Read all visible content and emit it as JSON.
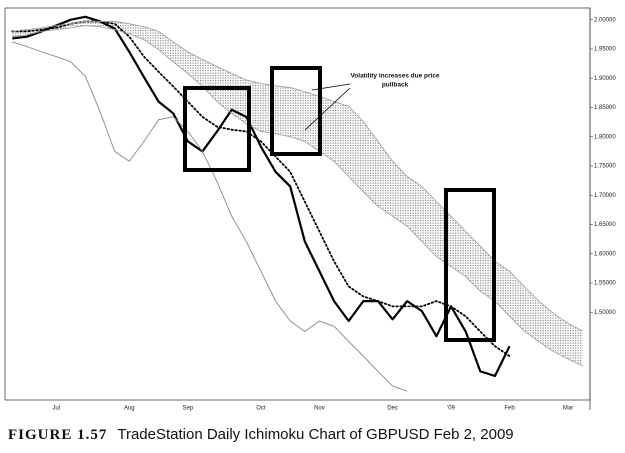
{
  "chart_data": {
    "type": "line",
    "annotation": [
      "Volatility increases due price",
      "pullback"
    ],
    "caption": {
      "figure": "FIGURE 1.57",
      "text": "TradeStation Daily Ichimoku Chart of GBPUSD Feb 2, 2009"
    },
    "categories": [
      null,
      null,
      null,
      "Jul",
      null,
      null,
      null,
      null,
      "Aug",
      null,
      null,
      null,
      "Sep",
      null,
      null,
      null,
      null,
      "Oct",
      null,
      null,
      null,
      "Nov",
      null,
      null,
      null,
      null,
      "Dec",
      null,
      null,
      null,
      "'09",
      null,
      null,
      null,
      "Feb",
      null,
      null,
      null,
      "Mar",
      null
    ],
    "series": [
      {
        "color": "#000000",
        "style": "solid",
        "width": 2.2,
        "values": [
          1.968,
          1.971,
          1.98,
          1.99,
          2.0,
          2.005,
          1.997,
          1.985,
          1.945,
          1.902,
          1.86,
          1.84,
          1.792,
          1.775,
          1.809,
          1.846,
          1.834,
          1.783,
          1.74,
          1.715,
          1.621,
          1.57,
          1.519,
          1.485,
          1.519,
          1.519,
          1.488,
          1.519,
          1.502,
          1.459,
          1.51,
          1.467,
          1.399,
          1.391,
          1.442,
          null,
          null,
          null,
          null,
          null
        ]
      },
      {
        "color": "#000000",
        "style": "dotted",
        "width": 1.8,
        "values": [
          1.98,
          1.98,
          1.983,
          1.986,
          1.993,
          1.997,
          1.997,
          1.993,
          1.971,
          1.937,
          1.911,
          1.886,
          1.86,
          1.834,
          1.817,
          1.812,
          1.809,
          1.792,
          1.766,
          1.74,
          1.689,
          1.638,
          1.587,
          1.544,
          1.527,
          1.519,
          1.51,
          1.51,
          1.51,
          1.519,
          1.51,
          1.493,
          1.467,
          1.442,
          1.425,
          null,
          null,
          null,
          null,
          null
        ]
      },
      {
        "color": "#888888",
        "style": "solid",
        "width": 0.9,
        "values": [
          1.962,
          1.954,
          1.945,
          1.937,
          1.928,
          1.903,
          1.843,
          1.775,
          1.758,
          1.792,
          1.829,
          1.834,
          1.809,
          1.775,
          1.723,
          1.664,
          1.621,
          1.57,
          1.519,
          1.485,
          1.467,
          1.485,
          1.476,
          1.45,
          1.425,
          1.399,
          1.374,
          1.365,
          null,
          null,
          null,
          null,
          null,
          null,
          null,
          null,
          null,
          null,
          null,
          null
        ]
      },
      {
        "color": "#999999",
        "style": "solid",
        "width": 0.8,
        "values": [
          1.971,
          1.974,
          1.98,
          1.983,
          1.986,
          1.99,
          1.988,
          1.983,
          1.976,
          1.966,
          1.949,
          1.928,
          1.908,
          1.886,
          1.86,
          1.84,
          1.822,
          1.809,
          1.805,
          1.8,
          1.792,
          1.775,
          1.758,
          1.732,
          1.706,
          1.681,
          1.664,
          1.647,
          1.621,
          1.595,
          1.578,
          1.561,
          1.536,
          1.519,
          1.493,
          1.468,
          1.45,
          1.433,
          1.42,
          1.408
        ]
      },
      {
        "color": "#999999",
        "style": "solid",
        "width": 0.8,
        "values": [
          1.98,
          1.983,
          1.986,
          1.99,
          1.993,
          1.997,
          1.997,
          1.997,
          1.993,
          1.988,
          1.98,
          1.962,
          1.945,
          1.932,
          1.92,
          1.908,
          1.897,
          1.891,
          1.887,
          1.884,
          1.877,
          1.869,
          1.86,
          1.852,
          1.826,
          1.792,
          1.758,
          1.732,
          1.715,
          1.689,
          1.664,
          1.638,
          1.613,
          1.587,
          1.57,
          1.544,
          1.519,
          1.498,
          1.481,
          1.468
        ]
      }
    ],
    "cloud_fill": "#bbbbbb",
    "ylim": [
      1.35,
      2.02
    ],
    "yticks": [
      {
        "value": 2.0,
        "label": "2.00000"
      },
      {
        "value": 1.95,
        "label": "1.95000"
      },
      {
        "value": 1.9,
        "label": "1.90000"
      },
      {
        "value": 1.85,
        "label": "1.85000"
      },
      {
        "value": 1.8,
        "label": "1.80000"
      },
      {
        "value": 1.75,
        "label": "1.75000"
      },
      {
        "value": 1.7,
        "label": "1.70000"
      },
      {
        "value": 1.65,
        "label": "1.65000"
      },
      {
        "value": 1.6,
        "label": "1.60000"
      },
      {
        "value": 1.55,
        "label": "1.55000"
      },
      {
        "value": 1.5,
        "label": "1.50000"
      }
    ],
    "grid": false
  }
}
